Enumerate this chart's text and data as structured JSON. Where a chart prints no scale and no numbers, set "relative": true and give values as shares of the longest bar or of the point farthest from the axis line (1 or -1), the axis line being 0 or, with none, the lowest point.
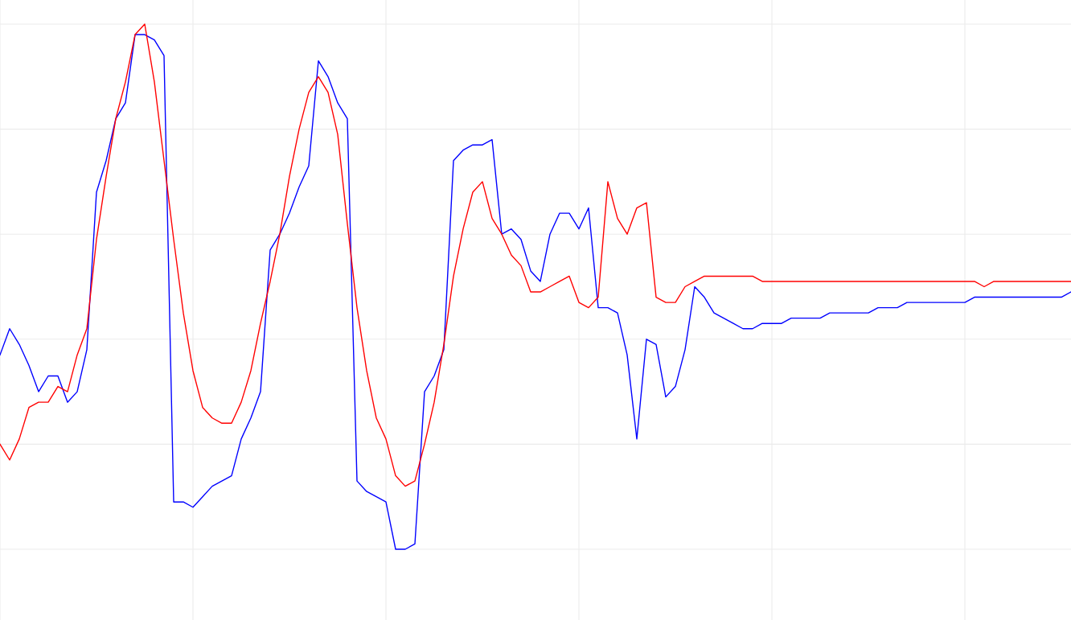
{
  "chart_data": {
    "type": "line",
    "relative": true,
    "grid": true,
    "categories": [
      null,
      null,
      null,
      null,
      null,
      null,
      null,
      null,
      null,
      null,
      null,
      null,
      null,
      null,
      null,
      null,
      null,
      null,
      null,
      null,
      null,
      null,
      null,
      null,
      null,
      null,
      null,
      null,
      null,
      null,
      null,
      null,
      null,
      null,
      null,
      null,
      null,
      null,
      null,
      null,
      null,
      null,
      null,
      null,
      null,
      null,
      null,
      null,
      null,
      null,
      null,
      null,
      null,
      null,
      null,
      null,
      null,
      null,
      null,
      null,
      null,
      null,
      null,
      null,
      null,
      null,
      null,
      null,
      null,
      null,
      null,
      null,
      null,
      null,
      null,
      null,
      null,
      null,
      null,
      null,
      null,
      null,
      null,
      null,
      null,
      null,
      null,
      null,
      null,
      null,
      null,
      null,
      null,
      null,
      null,
      null,
      null,
      null,
      null,
      null,
      null,
      null,
      null,
      null,
      null,
      null,
      null,
      null,
      null,
      null,
      null,
      null
    ],
    "series": [
      {
        "color": "#0000ff",
        "values": [
          0.37,
          0.42,
          0.39,
          0.35,
          0.3,
          0.33,
          0.33,
          0.28,
          0.3,
          0.38,
          0.68,
          0.74,
          0.82,
          0.85,
          0.98,
          0.98,
          0.97,
          0.94,
          0.09,
          0.09,
          0.08,
          0.1,
          0.12,
          0.13,
          0.14,
          0.21,
          0.25,
          0.3,
          0.57,
          0.6,
          0.64,
          0.69,
          0.73,
          0.93,
          0.9,
          0.85,
          0.82,
          0.13,
          0.11,
          0.1,
          0.09,
          0.0,
          0.0,
          0.01,
          0.3,
          0.33,
          0.38,
          0.74,
          0.76,
          0.77,
          0.77,
          0.78,
          0.6,
          0.61,
          0.59,
          0.53,
          0.51,
          0.6,
          0.64,
          0.64,
          0.61,
          0.65,
          0.46,
          0.46,
          0.45,
          0.37,
          0.21,
          0.4,
          0.39,
          0.29,
          0.31,
          0.38,
          0.5,
          0.48,
          0.45,
          0.44,
          0.43,
          0.42,
          0.42,
          0.43,
          0.43,
          0.43,
          0.44,
          0.44,
          0.44,
          0.44,
          0.45,
          0.45,
          0.45,
          0.45,
          0.45,
          0.46,
          0.46,
          0.46,
          0.47,
          0.47,
          0.47,
          0.47,
          0.47,
          0.47,
          0.47,
          0.48,
          0.48,
          0.48,
          0.48,
          0.48,
          0.48,
          0.48,
          0.48,
          0.48,
          0.48,
          0.49
        ]
      },
      {
        "color": "#ff0000",
        "values": [
          0.2,
          0.17,
          0.21,
          0.27,
          0.28,
          0.28,
          0.31,
          0.3,
          0.37,
          0.42,
          0.59,
          0.71,
          0.82,
          0.89,
          0.98,
          1.0,
          0.89,
          0.74,
          0.59,
          0.45,
          0.34,
          0.27,
          0.25,
          0.24,
          0.24,
          0.28,
          0.34,
          0.43,
          0.51,
          0.6,
          0.71,
          0.8,
          0.87,
          0.9,
          0.87,
          0.79,
          0.62,
          0.46,
          0.34,
          0.25,
          0.21,
          0.14,
          0.12,
          0.13,
          0.2,
          0.28,
          0.39,
          0.52,
          0.61,
          0.68,
          0.7,
          0.63,
          0.6,
          0.56,
          0.54,
          0.49,
          0.49,
          0.5,
          0.51,
          0.52,
          0.47,
          0.46,
          0.48,
          0.7,
          0.63,
          0.6,
          0.65,
          0.66,
          0.48,
          0.47,
          0.47,
          0.5,
          0.51,
          0.52,
          0.52,
          0.52,
          0.52,
          0.52,
          0.52,
          0.51,
          0.51,
          0.51,
          0.51,
          0.51,
          0.51,
          0.51,
          0.51,
          0.51,
          0.51,
          0.51,
          0.51,
          0.51,
          0.51,
          0.51,
          0.51,
          0.51,
          0.51,
          0.51,
          0.51,
          0.51,
          0.51,
          0.51,
          0.5,
          0.51,
          0.51,
          0.51,
          0.51,
          0.51,
          0.51,
          0.51,
          0.51,
          0.51
        ]
      }
    ]
  }
}
